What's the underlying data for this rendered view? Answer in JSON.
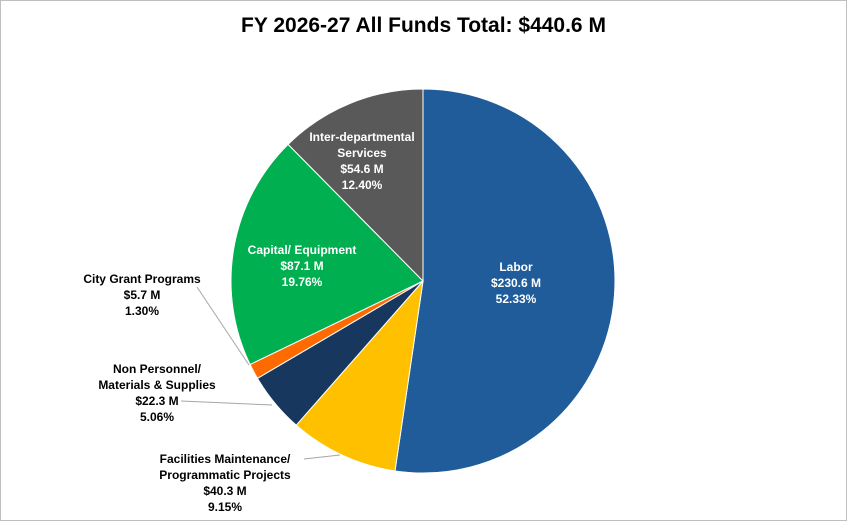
{
  "chart_data": {
    "type": "pie",
    "title": "FY 2026-27 All Funds Total: $440.6 M",
    "slices": [
      {
        "label": [
          "Labor"
        ],
        "amount": "$230.6 M",
        "percent_text": "52.33%",
        "value": 52.33,
        "color": "#1F5C99"
      },
      {
        "label": [
          "Facilities Maintenance/",
          "Programmatic Projects"
        ],
        "amount": "$40.3 M",
        "percent_text": "9.15%",
        "value": 9.15,
        "color": "#FFC000"
      },
      {
        "label": [
          "Non Personnel/",
          "Materials & Supplies"
        ],
        "amount": "$22.3 M",
        "percent_text": "5.06%",
        "value": 5.06,
        "color": "#17375E"
      },
      {
        "label": [
          "City Grant Programs"
        ],
        "amount": "$5.7 M",
        "percent_text": "1.30%",
        "value": 1.3,
        "color": "#FF6A00"
      },
      {
        "label": [
          "Capital/ Equipment"
        ],
        "amount": "$87.1 M",
        "percent_text": "19.76%",
        "value": 19.76,
        "color": "#00B050"
      },
      {
        "label": [
          "Inter-departmental",
          "Services"
        ],
        "amount": "$54.6 M",
        "percent_text": "12.40%",
        "value": 12.4,
        "color": "#595959"
      }
    ]
  }
}
